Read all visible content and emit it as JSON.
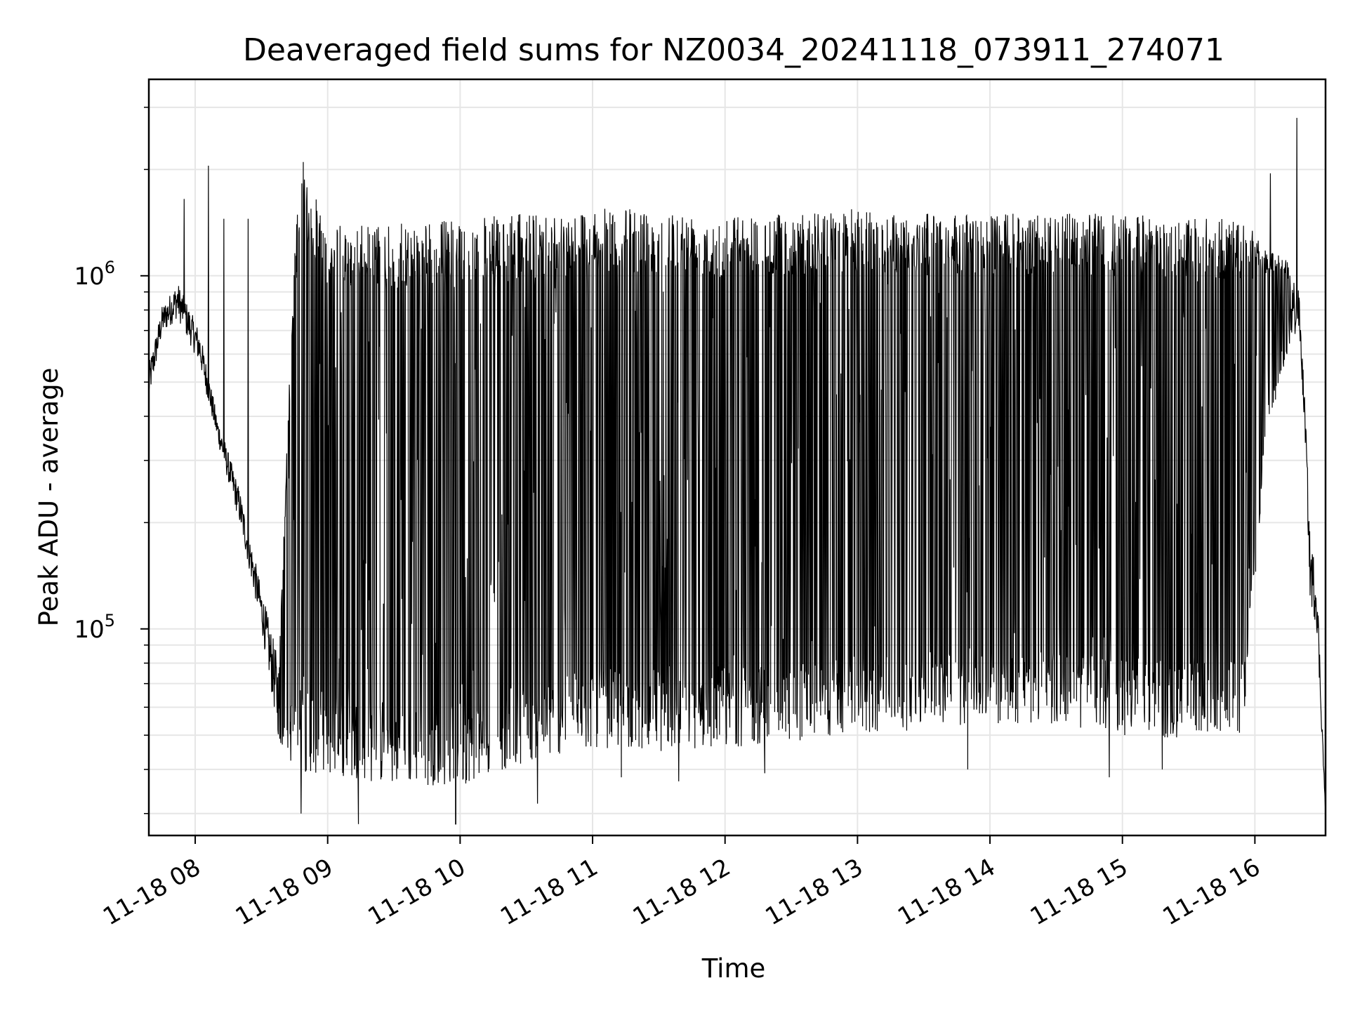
{
  "chart_data": {
    "type": "line",
    "title": "Deaveraged field sums for NZ0034_20241118_073911_274071",
    "xlabel": "Time",
    "ylabel": "Peak ADU - average",
    "yscale": "log",
    "xlim": [
      "2024-11-18 07:39",
      "2024-11-18 16:32"
    ],
    "ylim": [
      26000,
      3600000
    ],
    "grid": true,
    "line_color": "#000000",
    "x_ticks": [
      "11-18 08",
      "11-18 09",
      "11-18 10",
      "11-18 11",
      "11-18 12",
      "11-18 13",
      "11-18 14",
      "11-18 15",
      "11-18 16"
    ],
    "y_ticks": [
      {
        "base": "10",
        "exp": "5",
        "value": 100000
      },
      {
        "base": "10",
        "exp": "6",
        "value": 1000000
      }
    ],
    "series": [
      {
        "envelope_upper": [
          [
            "2024-11-18 07:39",
            560000
          ],
          [
            "2024-11-18 07:45",
            820000
          ],
          [
            "2024-11-18 07:52",
            960000
          ],
          [
            "2024-11-18 08:02",
            700000
          ],
          [
            "2024-11-18 08:10",
            400000
          ],
          [
            "2024-11-18 08:20",
            250000
          ],
          [
            "2024-11-18 08:30",
            130000
          ],
          [
            "2024-11-18 08:38",
            80000
          ],
          [
            "2024-11-18 08:45",
            1300000
          ],
          [
            "2024-11-18 08:49",
            2000000
          ],
          [
            "2024-11-18 09:00",
            1400000
          ],
          [
            "2024-11-18 09:30",
            1400000
          ],
          [
            "2024-11-18 10:00",
            1450000
          ],
          [
            "2024-11-18 10:30",
            1500000
          ],
          [
            "2024-11-18 11:00",
            1550000
          ],
          [
            "2024-11-18 11:30",
            1550000
          ],
          [
            "2024-11-18 12:00",
            1500000
          ],
          [
            "2024-11-18 12:30",
            1500000
          ],
          [
            "2024-11-18 13:00",
            1550000
          ],
          [
            "2024-11-18 13:30",
            1500000
          ],
          [
            "2024-11-18 14:00",
            1500000
          ],
          [
            "2024-11-18 14:30",
            1500000
          ],
          [
            "2024-11-18 15:00",
            1500000
          ],
          [
            "2024-11-18 15:30",
            1450000
          ],
          [
            "2024-11-18 15:55",
            1450000
          ],
          [
            "2024-11-18 16:05",
            1200000
          ],
          [
            "2024-11-18 16:15",
            1100000
          ],
          [
            "2024-11-18 16:20",
            900000
          ],
          [
            "2024-11-18 16:23",
            400000
          ],
          [
            "2024-11-18 16:25",
            180000
          ],
          [
            "2024-11-18 16:28",
            150000
          ],
          [
            "2024-11-18 16:32",
            30000
          ]
        ],
        "envelope_lower": [
          [
            "2024-11-18 07:39",
            440000
          ],
          [
            "2024-11-18 07:45",
            680000
          ],
          [
            "2024-11-18 07:52",
            760000
          ],
          [
            "2024-11-18 08:02",
            560000
          ],
          [
            "2024-11-18 08:10",
            340000
          ],
          [
            "2024-11-18 08:20",
            200000
          ],
          [
            "2024-11-18 08:30",
            100000
          ],
          [
            "2024-11-18 08:38",
            48000
          ],
          [
            "2024-11-18 08:45",
            40000
          ],
          [
            "2024-11-18 09:00",
            38000
          ],
          [
            "2024-11-18 09:30",
            36000
          ],
          [
            "2024-11-18 10:00",
            36000
          ],
          [
            "2024-11-18 10:30",
            42000
          ],
          [
            "2024-11-18 11:00",
            46000
          ],
          [
            "2024-11-18 11:30",
            45000
          ],
          [
            "2024-11-18 12:00",
            46000
          ],
          [
            "2024-11-18 12:30",
            48000
          ],
          [
            "2024-11-18 13:00",
            50000
          ],
          [
            "2024-11-18 13:30",
            52000
          ],
          [
            "2024-11-18 14:00",
            54000
          ],
          [
            "2024-11-18 14:30",
            53000
          ],
          [
            "2024-11-18 15:00",
            50000
          ],
          [
            "2024-11-18 15:30",
            48000
          ],
          [
            "2024-11-18 15:55",
            50000
          ],
          [
            "2024-11-18 16:05",
            350000
          ],
          [
            "2024-11-18 16:15",
            600000
          ],
          [
            "2024-11-18 16:20",
            700000
          ],
          [
            "2024-11-18 16:23",
            320000
          ],
          [
            "2024-11-18 16:25",
            120000
          ],
          [
            "2024-11-18 16:28",
            100000
          ],
          [
            "2024-11-18 16:32",
            30000
          ]
        ],
        "spikes": [
          [
            "2024-11-18 07:55",
            1650000
          ],
          [
            "2024-11-18 08:06",
            2050000
          ],
          [
            "2024-11-18 08:13",
            1450000
          ],
          [
            "2024-11-18 08:24",
            1450000
          ],
          [
            "2024-11-18 08:49",
            2100000
          ],
          [
            "2024-11-18 16:07",
            1950000
          ],
          [
            "2024-11-18 16:19",
            2800000
          ]
        ],
        "dips": [
          [
            "2024-11-18 08:48",
            30000
          ],
          [
            "2024-11-18 09:14",
            28000
          ],
          [
            "2024-11-18 09:58",
            28000
          ],
          [
            "2024-11-18 10:35",
            32000
          ],
          [
            "2024-11-18 11:13",
            38000
          ],
          [
            "2024-11-18 11:39",
            37000
          ],
          [
            "2024-11-18 12:18",
            39000
          ],
          [
            "2024-11-18 13:50",
            40000
          ],
          [
            "2024-11-18 14:54",
            38000
          ],
          [
            "2024-11-18 15:18",
            40000
          ]
        ]
      }
    ]
  }
}
